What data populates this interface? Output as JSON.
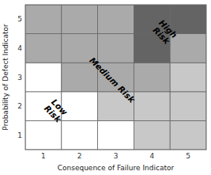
{
  "chart_data": {
    "type": "heatmap",
    "title": "",
    "xlabel": "Consequence of Failure Indicator",
    "ylabel": "Probability of Defect Indicator",
    "x": [
      1,
      2,
      3,
      4,
      5
    ],
    "y": [
      1,
      2,
      3,
      4,
      5
    ],
    "colors": [
      [
        "#ffffff",
        "#ffffff",
        "#ffffff",
        "#c8c8c8",
        "#c8c8c8"
      ],
      [
        "#ffffff",
        "#ffffff",
        "#c8c8c8",
        "#c8c8c8",
        "#c8c8c8"
      ],
      [
        "#ffffff",
        "#aaaaaa",
        "#aaaaaa",
        "#aaaaaa",
        "#c8c8c8"
      ],
      [
        "#aaaaaa",
        "#aaaaaa",
        "#aaaaaa",
        "#646464",
        "#aaaaaa"
      ],
      [
        "#aaaaaa",
        "#aaaaaa",
        "#aaaaaa",
        "#646464",
        "#646464"
      ]
    ],
    "annotations": [
      {
        "text": "Low\nRisk",
        "x": 1.35,
        "y": 1.85
      },
      {
        "text": "Medium Risk",
        "x": 2.9,
        "y": 2.9
      },
      {
        "text": "High\nRisk",
        "x": 4.35,
        "y": 4.55
      }
    ],
    "xlim": [
      0.5,
      5.5
    ],
    "ylim": [
      0.5,
      5.5
    ],
    "xticks": [
      1,
      2,
      3,
      4,
      5
    ],
    "yticks": [
      1,
      2,
      3,
      4,
      5
    ],
    "grid": true
  }
}
